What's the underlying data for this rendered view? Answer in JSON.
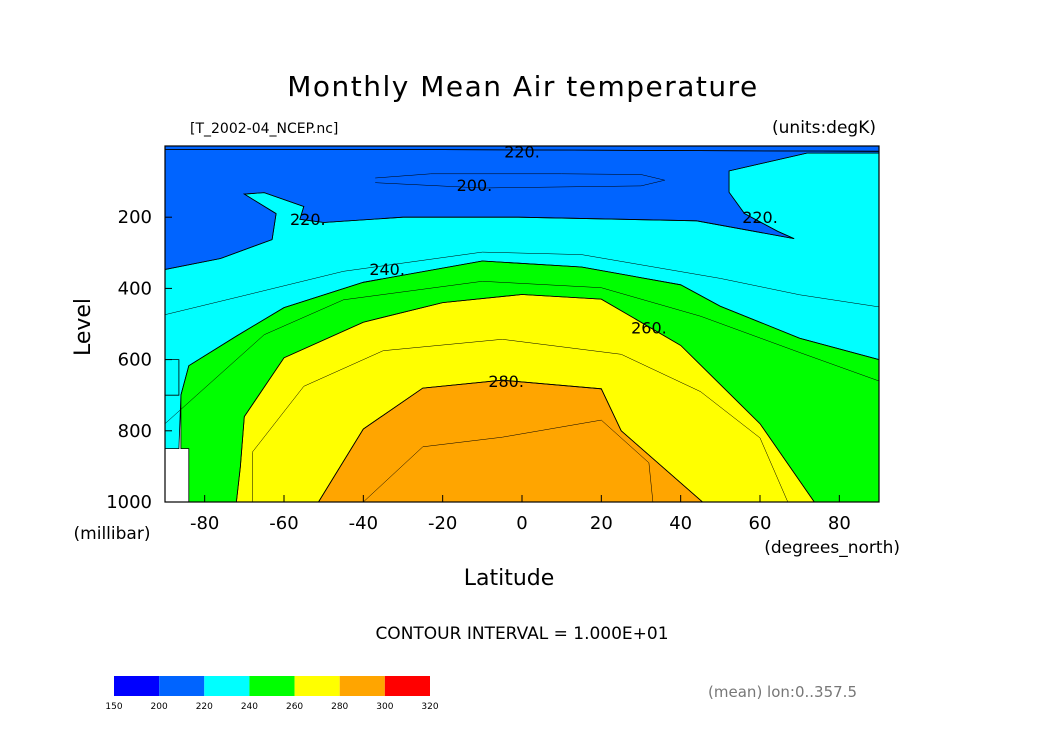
{
  "chart_data": {
    "type": "contour",
    "title": "Monthly Mean Air temperature",
    "source_label": "[T_2002-04_NCEP.nc]",
    "units_label": "(units:degK)",
    "xlabel": "Latitude",
    "ylabel": "Level",
    "x_units_label": "(degrees_north)",
    "y_units_label": "(millibar)",
    "xlim": [
      -90,
      90
    ],
    "ylim": [
      0,
      1000
    ],
    "y_inverted": true,
    "x_ticks": [
      "-80",
      "-60",
      "-40",
      "-20",
      "0",
      "20",
      "40",
      "60",
      "80"
    ],
    "x_tick_values": [
      -80,
      -60,
      -40,
      -20,
      0,
      20,
      40,
      60,
      80
    ],
    "y_ticks": [
      "200",
      "400",
      "600",
      "800",
      "1000"
    ],
    "y_tick_values": [
      200,
      400,
      600,
      800,
      1000
    ],
    "contour_interval_label": "CONTOUR INTERVAL = 1.000E+01",
    "mean_label": "(mean) lon:0..357.5",
    "contour_labels": [
      {
        "text": "220.",
        "x": 0,
        "y": 15
      },
      {
        "text": "200.",
        "x": -12,
        "y": 110
      },
      {
        "text": "220.",
        "x": -54,
        "y": 205
      },
      {
        "text": "240.",
        "x": -34,
        "y": 345
      },
      {
        "text": "260.",
        "x": 32,
        "y": 510
      },
      {
        "text": "280.",
        "x": -4,
        "y": 660
      },
      {
        "text": "220.",
        "x": 60,
        "y": 200
      }
    ],
    "bands": [
      {
        "range": [
          150,
          200
        ],
        "color": "#0000ff",
        "polygons": [
          [
            [
              -23.3,
              93
            ],
            [
              -7.5,
              80
            ],
            [
              12.9,
              80
            ],
            [
              21.6,
              90
            ],
            [
              18.2,
              101
            ],
            [
              -7.5,
              106
            ],
            [
              -23.3,
              101
            ]
          ]
        ]
      },
      {
        "range": [
          200,
          220
        ],
        "color": "#0064ff",
        "polygons": [
          [
            [
              -90,
              0
            ],
            [
              90,
              0
            ],
            [
              90,
              15
            ],
            [
              -20,
              10
            ],
            [
              -90,
              10
            ]
          ],
          [
            [
              -90,
              10
            ],
            [
              -20,
              10
            ],
            [
              90,
              15
            ],
            [
              90,
              20
            ],
            [
              71.8,
              20
            ],
            [
              52.2,
              70
            ],
            [
              52.2,
              130
            ],
            [
              56.1,
              190
            ],
            [
              64.5,
              240
            ],
            [
              68.6,
              260
            ],
            [
              44,
              210
            ],
            [
              -0.9,
              200
            ],
            [
              -30,
              200
            ],
            [
              -50,
              215
            ],
            [
              -56,
              206
            ],
            [
              -55,
              170
            ],
            [
              -65,
              131
            ],
            [
              -70,
              135
            ],
            [
              -62,
              190
            ],
            [
              -63,
              263
            ],
            [
              -76,
              316
            ],
            [
              -90,
              347
            ]
          ]
        ]
      },
      {
        "range": [
          220,
          240
        ],
        "color": "#00ffff",
        "polygons": [
          [
            [
              71.8,
              20
            ],
            [
              90,
              20
            ],
            [
              90,
              600
            ],
            [
              70,
              540
            ],
            [
              50,
              450
            ],
            [
              40,
              390
            ],
            [
              15,
              340
            ],
            [
              -10,
              323
            ],
            [
              -40,
              383
            ],
            [
              -60,
              454
            ],
            [
              -72,
              534
            ],
            [
              -84,
              617
            ],
            [
              -86,
              700
            ],
            [
              -86.5,
              850
            ],
            [
              -90,
              850
            ],
            [
              -90,
              347
            ],
            [
              -76,
              316
            ],
            [
              -63,
              263
            ],
            [
              -62,
              190
            ],
            [
              -70,
              135
            ],
            [
              -65,
              131
            ],
            [
              -55,
              170
            ],
            [
              -56,
              206
            ],
            [
              -50,
              215
            ],
            [
              -30,
              200
            ],
            [
              -0.9,
              200
            ],
            [
              44,
              210
            ],
            [
              68.6,
              260
            ],
            [
              64.5,
              240
            ],
            [
              56.1,
              190
            ],
            [
              52.2,
              130
            ],
            [
              52.2,
              70
            ]
          ],
          [
            [
              -90,
              600
            ],
            [
              -86.5,
              600
            ],
            [
              -86.5,
              700
            ],
            [
              -90,
              700
            ]
          ]
        ]
      },
      {
        "range": [
          240,
          260
        ],
        "color": "#00ff00",
        "polygons": [
          [
            [
              -10,
              323
            ],
            [
              15,
              340
            ],
            [
              40,
              390
            ],
            [
              50,
              450
            ],
            [
              70,
              540
            ],
            [
              90,
              600
            ],
            [
              90,
              1000
            ],
            [
              73.7,
              1000
            ],
            [
              60,
              780
            ],
            [
              40,
              560
            ],
            [
              20,
              430
            ],
            [
              0,
              417
            ],
            [
              -20,
              440
            ],
            [
              -40,
              495
            ],
            [
              -60,
              595
            ],
            [
              -70,
              760
            ],
            [
              -71,
              900
            ],
            [
              -72,
              1000
            ],
            [
              -84,
              1000
            ],
            [
              -84,
              850
            ],
            [
              -86,
              850
            ],
            [
              -86,
              700
            ],
            [
              -84,
              617
            ],
            [
              -72,
              534
            ],
            [
              -60,
              454
            ],
            [
              -40,
              383
            ]
          ]
        ]
      },
      {
        "range": [
          260,
          280
        ],
        "color": "#ffff00",
        "polygons": [
          [
            [
              0,
              417
            ],
            [
              20,
              430
            ],
            [
              40,
              560
            ],
            [
              60,
              780
            ],
            [
              73.7,
              1000
            ],
            [
              45.5,
              1000
            ],
            [
              25,
              800
            ],
            [
              20,
              682
            ],
            [
              -5,
              658
            ],
            [
              -25,
              680
            ],
            [
              -40,
              795
            ],
            [
              -51.3,
              1000
            ],
            [
              -72,
              1000
            ],
            [
              -71,
              900
            ],
            [
              -70,
              760
            ],
            [
              -60,
              595
            ],
            [
              -40,
              495
            ],
            [
              -20,
              440
            ]
          ]
        ]
      },
      {
        "range": [
          280,
          300
        ],
        "color": "#ffa500",
        "polygons": [
          [
            [
              -5,
              658
            ],
            [
              20,
              682
            ],
            [
              25,
              800
            ],
            [
              45.5,
              1000
            ],
            [
              -51.3,
              1000
            ],
            [
              -40,
              795
            ],
            [
              -25,
              680
            ]
          ]
        ]
      }
    ],
    "contour_lines": [
      [
        [
          -37,
          90
        ],
        [
          -23,
          78
        ],
        [
          10,
          78
        ],
        [
          30,
          80
        ],
        [
          36,
          96
        ],
        [
          30,
          112
        ],
        [
          -10,
          118
        ],
        [
          -37,
          103
        ]
      ],
      [
        [
          -90,
          474
        ],
        [
          -70,
          420
        ],
        [
          -45,
          352
        ],
        [
          -10,
          298
        ],
        [
          15,
          305
        ],
        [
          50,
          372
        ],
        [
          70,
          418
        ],
        [
          90,
          452
        ]
      ],
      [
        [
          -90,
          780
        ],
        [
          -82,
          700
        ],
        [
          -65,
          530
        ],
        [
          -45,
          432
        ],
        [
          -10,
          380
        ],
        [
          20,
          398
        ],
        [
          45,
          478
        ],
        [
          70,
          580
        ],
        [
          90,
          660
        ]
      ],
      [
        [
          -68,
          1000
        ],
        [
          -68,
          860
        ],
        [
          -55,
          675
        ],
        [
          -35,
          575
        ],
        [
          -5,
          543
        ],
        [
          25,
          585
        ],
        [
          45,
          690
        ],
        [
          60,
          820
        ],
        [
          67,
          1000
        ]
      ],
      [
        [
          -40,
          1000
        ],
        [
          -25,
          845
        ],
        [
          -5,
          818
        ],
        [
          20,
          770
        ],
        [
          32,
          890
        ],
        [
          33,
          1000
        ]
      ]
    ],
    "colorbar": {
      "levels": [
        "150",
        "200",
        "220",
        "240",
        "260",
        "280",
        "300",
        "320"
      ],
      "colors": [
        "#0000ff",
        "#0064ff",
        "#00ffff",
        "#00ff00",
        "#ffff00",
        "#ffa500",
        "#ff0000"
      ]
    }
  }
}
